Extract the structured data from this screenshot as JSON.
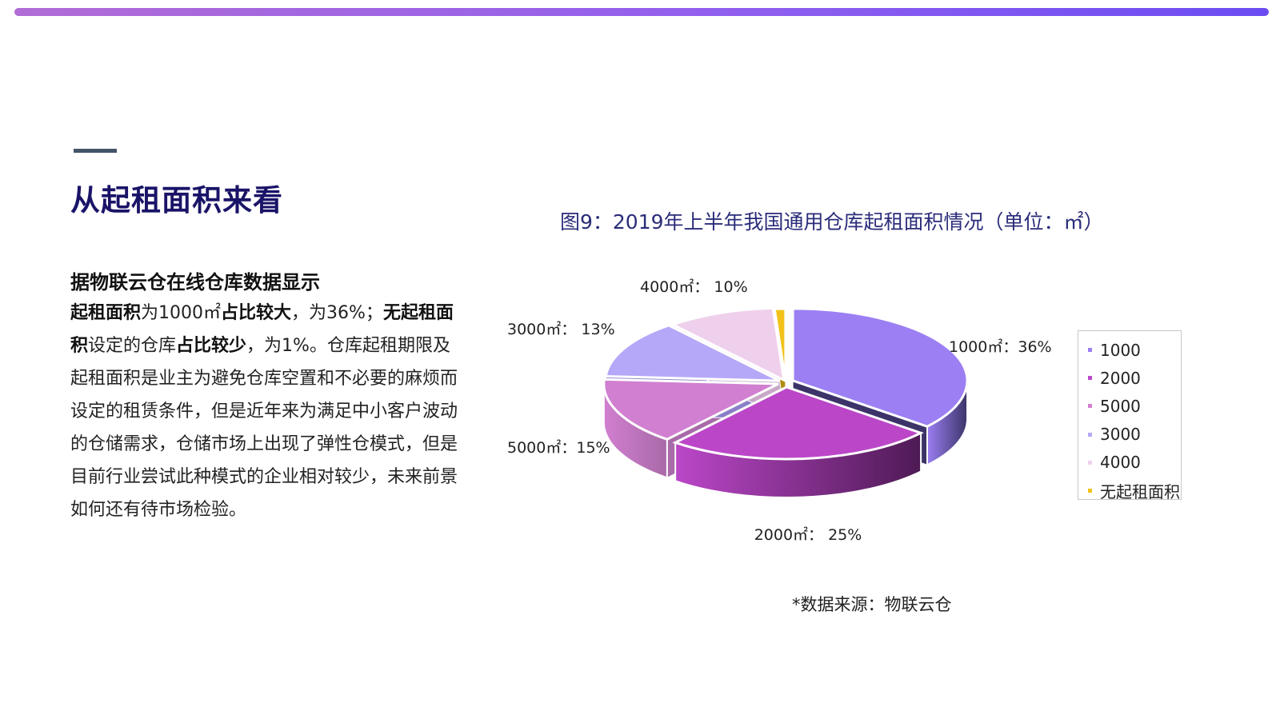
{
  "section_title": "从起租面积来看",
  "subtitle": "据物联云仓在线仓库数据显示",
  "paragraph": [
    {
      "text": "起租面积",
      "bold": true
    },
    {
      "text": "为1000㎡",
      "bold": false
    },
    {
      "text": "占比较大",
      "bold": true
    },
    {
      "text": "，为36%；",
      "bold": false
    },
    {
      "text": "无起租面积",
      "bold": true
    },
    {
      "text": "设定的仓库",
      "bold": false
    },
    {
      "text": "占比较少",
      "bold": true
    },
    {
      "text": "，为1%。仓库起租期限及起租面积是业主为避免仓库空置和不必要的麻烦而设定的租赁条件，但是近年来为满足中小客户波动的仓储需求，仓储市场上出现了弹性仓模式，但是目前行业尝试此种模式的企业相对较少，未来前景如何还有待市场检验。",
      "bold": false
    }
  ],
  "source": "*数据来源：物联云仓",
  "colors": {
    "accent_bar_start": "#b16cd6",
    "accent_bar_end": "#6b4cf2",
    "title": "#1a1468"
  },
  "chart_data": {
    "type": "pie",
    "title": "图9：2019年上半年我国通用仓库起租面积情况（单位：㎡）",
    "three_d": true,
    "legend_position": "right",
    "slices": [
      {
        "name": "1000",
        "value": 36,
        "label": "1000㎡：36%",
        "color": "#9b7ff3",
        "side": "#3c3468"
      },
      {
        "name": "2000",
        "value": 25,
        "label": "2000㎡： 25%",
        "color": "#bb47c8",
        "side": "#4e1a55"
      },
      {
        "name": "5000",
        "value": 15,
        "label": "5000㎡：15%",
        "color": "#d17fd0",
        "side": "#a86aa8"
      },
      {
        "name": "3000",
        "value": 13,
        "label": "3000㎡： 13%",
        "color": "#b6a8f8",
        "side": "#8a7fc8"
      },
      {
        "name": "4000",
        "value": 10,
        "label": "4000㎡： 10%",
        "color": "#efd0ec",
        "side": "#c8a8c6"
      },
      {
        "name": "无起租面积",
        "value": 1,
        "label": "",
        "color": "#f2c21a",
        "side": "#b08c10"
      }
    ]
  }
}
